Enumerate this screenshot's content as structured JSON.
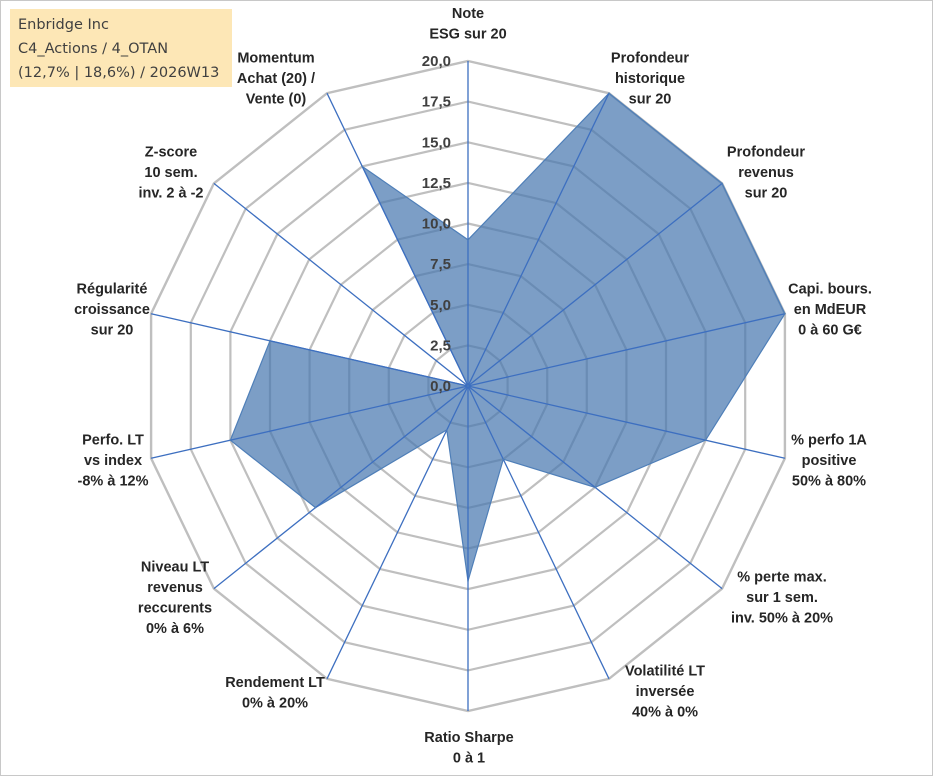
{
  "header": {
    "line1": "Enbridge Inc",
    "line2": "C4_Actions / 4_OTAN",
    "line3": "(12,7% | 18,6%) / 2026W13"
  },
  "chart_data": {
    "type": "radar",
    "title": "Enbridge Inc",
    "rlim": [
      0,
      20
    ],
    "ticks": [
      "0,0",
      "2,5",
      "5,0",
      "7,5",
      "10,0",
      "12,5",
      "15,0",
      "17,5",
      "20,0"
    ],
    "axes": [
      [
        "Note",
        "ESG sur 20"
      ],
      [
        "Profondeur",
        "historique",
        "sur 20"
      ],
      [
        "Profondeur",
        "revenus",
        "sur 20"
      ],
      [
        "Capi. bours.",
        "en MdEUR",
        "0 à 60 G€"
      ],
      [
        "% perfo 1A",
        "positive",
        "50% à 80%"
      ],
      [
        "% perte max.",
        "sur 1 sem.",
        "inv. 50% à 20%"
      ],
      [
        "Volatilité LT",
        "inversée",
        "40% à 0%"
      ],
      [
        "Ratio Sharpe",
        "0 à 1"
      ],
      [
        "Rendement LT",
        "0% à 20%"
      ],
      [
        "Niveau LT",
        "revenus",
        "reccurents",
        "0% à 6%"
      ],
      [
        "Perfo. LT",
        "vs index",
        "-8% à 12%"
      ],
      [
        "Régularité",
        "croissance",
        "sur 20"
      ],
      [
        "Z-score",
        "10 sem.",
        "inv. 2 à -2"
      ],
      [
        "Momentum",
        "Achat (20) /",
        "Vente (0)"
      ]
    ],
    "series": [
      {
        "name": "Enbridge Inc",
        "values": [
          9,
          20,
          20,
          20,
          15,
          10,
          5,
          12,
          3,
          12,
          15,
          12.5,
          0,
          15
        ]
      }
    ],
    "colors": {
      "fill": "#4a78b0",
      "edge": "#4f7fb8",
      "spoke": "#3d6fc0",
      "grid": "#bfbfbf"
    }
  }
}
